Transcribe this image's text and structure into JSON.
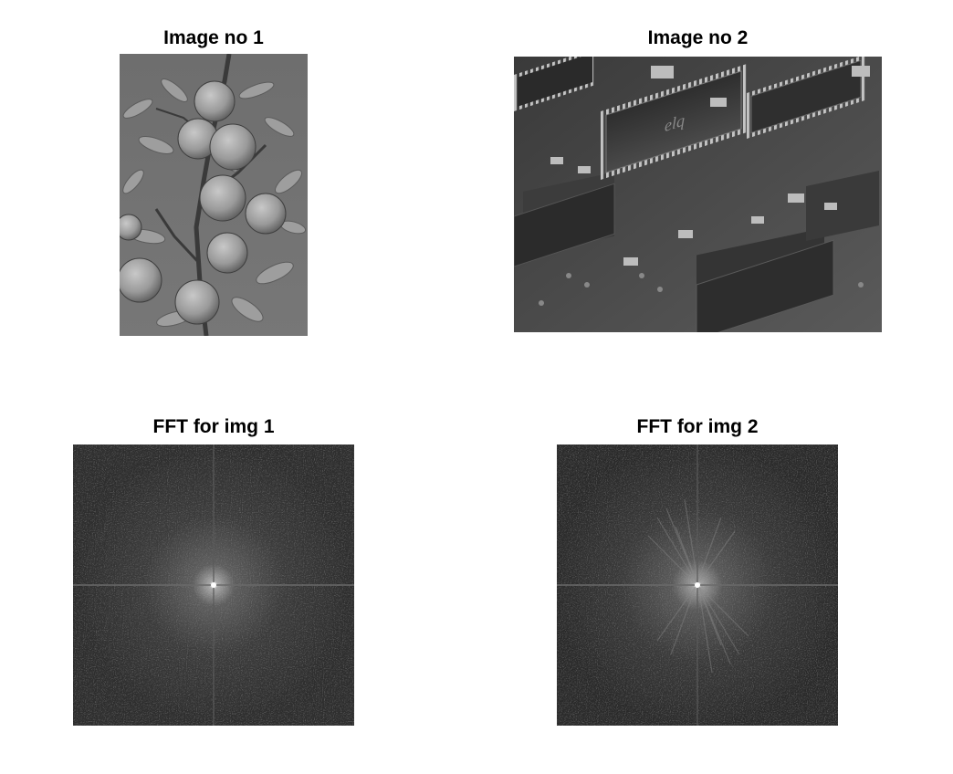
{
  "figure": {
    "panels": [
      {
        "title": "Image no 1",
        "content": "grayscale photo of oranges on a branch"
      },
      {
        "title": "Image no 2",
        "content": "grayscale photo of a circuit board"
      },
      {
        "title": "FFT for img 1",
        "content": "log-magnitude Fourier spectrum"
      },
      {
        "title": "FFT for img 2",
        "content": "log-magnitude Fourier spectrum"
      }
    ]
  }
}
